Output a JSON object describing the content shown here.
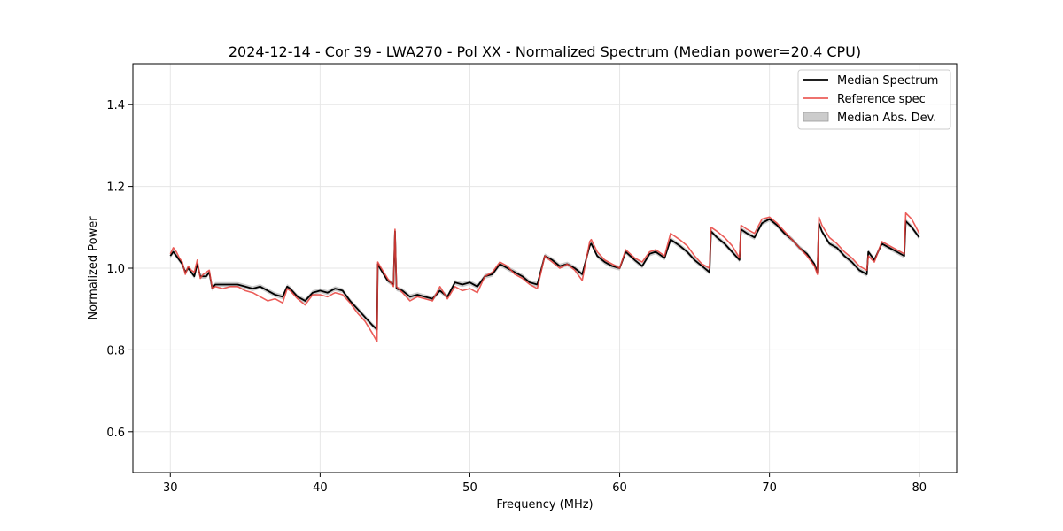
{
  "chart_data": {
    "type": "line",
    "title": "2024-12-14 - Cor 39 - LWA270 - Pol XX - Normalized Spectrum (Median power=20.4 CPU)",
    "xlabel": "Frequency (MHz)",
    "ylabel": "Normalized Power",
    "xlim": [
      27.5,
      82.5
    ],
    "ylim": [
      0.5,
      1.5
    ],
    "xticks": [
      30,
      40,
      50,
      60,
      70,
      80
    ],
    "yticks": [
      0.6,
      0.8,
      1.0,
      1.2,
      1.4
    ],
    "xtick_labels": [
      "30",
      "40",
      "50",
      "60",
      "70",
      "80"
    ],
    "ytick_labels": [
      "0.6",
      "0.8",
      "1.0",
      "1.2",
      "1.4"
    ],
    "grid": true,
    "legend_position": "top-right",
    "colors": {
      "median": "#000000",
      "reference": "#e8413c",
      "mad": "#bbbbbb"
    },
    "series": [
      {
        "name": "Median Spectrum",
        "x": [
          30.0,
          30.2,
          30.4,
          30.6,
          30.8,
          31.0,
          31.2,
          31.4,
          31.6,
          31.8,
          32.0,
          32.2,
          32.4,
          32.6,
          32.8,
          33.0,
          33.5,
          34.0,
          34.5,
          35.0,
          35.5,
          36.0,
          36.5,
          37.0,
          37.5,
          37.8,
          38.0,
          38.5,
          39.0,
          39.5,
          40.0,
          40.5,
          41.0,
          41.5,
          42.0,
          42.5,
          43.0,
          43.5,
          43.8,
          43.85,
          44.0,
          44.5,
          44.9,
          45.0,
          45.1,
          45.5,
          46.0,
          46.5,
          47.0,
          47.5,
          48.0,
          48.5,
          49.0,
          49.5,
          50.0,
          50.5,
          51.0,
          51.5,
          52.0,
          52.5,
          53.0,
          53.5,
          54.0,
          54.5,
          55.0,
          55.5,
          56.0,
          56.5,
          57.0,
          57.5,
          58.0,
          58.1,
          58.5,
          59.0,
          59.5,
          60.0,
          60.4,
          61.0,
          61.5,
          62.0,
          62.4,
          63.0,
          63.4,
          64.0,
          64.5,
          65.0,
          65.5,
          66.0,
          66.1,
          66.5,
          67.0,
          67.5,
          68.0,
          68.1,
          68.5,
          69.0,
          69.5,
          70.0,
          70.5,
          71.0,
          71.5,
          72.0,
          72.5,
          73.0,
          73.2,
          73.3,
          73.5,
          74.0,
          74.5,
          75.0,
          75.5,
          76.0,
          76.5,
          76.6,
          77.0,
          77.5,
          78.0,
          78.5,
          79.0,
          79.1,
          79.5,
          80.0
        ],
        "y": [
          1.03,
          1.04,
          1.03,
          1.02,
          1.01,
          0.99,
          1.0,
          0.99,
          0.98,
          1.01,
          0.98,
          0.98,
          0.98,
          0.99,
          0.95,
          0.96,
          0.96,
          0.96,
          0.96,
          0.955,
          0.95,
          0.955,
          0.945,
          0.935,
          0.93,
          0.955,
          0.95,
          0.93,
          0.92,
          0.94,
          0.945,
          0.94,
          0.95,
          0.945,
          0.92,
          0.9,
          0.88,
          0.86,
          0.85,
          1.01,
          1.0,
          0.97,
          0.96,
          1.09,
          0.95,
          0.945,
          0.93,
          0.935,
          0.93,
          0.925,
          0.945,
          0.93,
          0.965,
          0.96,
          0.965,
          0.955,
          0.98,
          0.985,
          1.01,
          1.0,
          0.99,
          0.98,
          0.965,
          0.96,
          1.03,
          1.02,
          1.005,
          1.01,
          1.0,
          0.985,
          1.055,
          1.06,
          1.03,
          1.015,
          1.005,
          1.0,
          1.04,
          1.02,
          1.005,
          1.035,
          1.04,
          1.025,
          1.07,
          1.055,
          1.04,
          1.02,
          1.005,
          0.99,
          1.09,
          1.075,
          1.06,
          1.04,
          1.02,
          1.095,
          1.085,
          1.075,
          1.11,
          1.12,
          1.105,
          1.085,
          1.07,
          1.05,
          1.035,
          1.01,
          0.99,
          1.11,
          1.09,
          1.06,
          1.05,
          1.03,
          1.015,
          0.995,
          0.985,
          1.04,
          1.02,
          1.06,
          1.05,
          1.04,
          1.03,
          1.115,
          1.1,
          1.075
        ]
      },
      {
        "name": "Reference spec",
        "x": [
          30.0,
          30.2,
          30.4,
          30.6,
          30.8,
          31.0,
          31.2,
          31.4,
          31.6,
          31.8,
          32.0,
          32.2,
          32.4,
          32.6,
          32.8,
          33.0,
          33.5,
          34.0,
          34.5,
          35.0,
          35.5,
          36.0,
          36.5,
          37.0,
          37.5,
          37.8,
          38.0,
          38.5,
          39.0,
          39.5,
          40.0,
          40.5,
          41.0,
          41.5,
          42.0,
          42.5,
          43.0,
          43.5,
          43.8,
          43.85,
          44.0,
          44.5,
          44.9,
          45.0,
          45.1,
          45.5,
          46.0,
          46.5,
          47.0,
          47.5,
          48.0,
          48.5,
          49.0,
          49.5,
          50.0,
          50.5,
          51.0,
          51.5,
          52.0,
          52.5,
          53.0,
          53.5,
          54.0,
          54.5,
          55.0,
          55.5,
          56.0,
          56.5,
          57.0,
          57.5,
          58.0,
          58.1,
          58.5,
          59.0,
          59.5,
          60.0,
          60.4,
          61.0,
          61.5,
          62.0,
          62.4,
          63.0,
          63.4,
          64.0,
          64.5,
          65.0,
          65.5,
          66.0,
          66.1,
          66.5,
          67.0,
          67.5,
          68.0,
          68.1,
          68.5,
          69.0,
          69.5,
          70.0,
          70.5,
          71.0,
          71.5,
          72.0,
          72.5,
          73.0,
          73.2,
          73.3,
          73.5,
          74.0,
          74.5,
          75.0,
          75.5,
          76.0,
          76.5,
          76.6,
          77.0,
          77.5,
          78.0,
          78.5,
          79.0,
          79.1,
          79.5,
          80.0
        ],
        "y": [
          1.035,
          1.05,
          1.04,
          1.025,
          1.015,
          0.985,
          1.005,
          0.995,
          0.99,
          1.02,
          0.975,
          0.985,
          0.99,
          0.995,
          0.95,
          0.955,
          0.95,
          0.955,
          0.955,
          0.945,
          0.94,
          0.93,
          0.92,
          0.925,
          0.915,
          0.95,
          0.945,
          0.925,
          0.91,
          0.935,
          0.935,
          0.93,
          0.94,
          0.935,
          0.915,
          0.89,
          0.87,
          0.84,
          0.82,
          1.015,
          1.005,
          0.975,
          0.955,
          1.095,
          0.955,
          0.94,
          0.92,
          0.93,
          0.925,
          0.92,
          0.955,
          0.925,
          0.955,
          0.945,
          0.95,
          0.94,
          0.98,
          0.99,
          1.015,
          1.005,
          0.985,
          0.975,
          0.96,
          0.95,
          1.03,
          1.015,
          1.0,
          1.01,
          0.995,
          0.97,
          1.065,
          1.07,
          1.04,
          1.02,
          1.01,
          1.0,
          1.045,
          1.025,
          1.015,
          1.04,
          1.045,
          1.03,
          1.085,
          1.07,
          1.055,
          1.03,
          1.01,
          1.0,
          1.1,
          1.09,
          1.075,
          1.055,
          1.025,
          1.105,
          1.095,
          1.085,
          1.12,
          1.125,
          1.11,
          1.09,
          1.07,
          1.05,
          1.03,
          1.005,
          0.985,
          1.125,
          1.105,
          1.075,
          1.06,
          1.04,
          1.025,
          1.005,
          0.995,
          1.03,
          1.015,
          1.065,
          1.055,
          1.045,
          1.035,
          1.135,
          1.12,
          1.085
        ]
      }
    ],
    "band": {
      "name": "Median Abs. Dev.",
      "halfwidth": 0.006
    }
  }
}
